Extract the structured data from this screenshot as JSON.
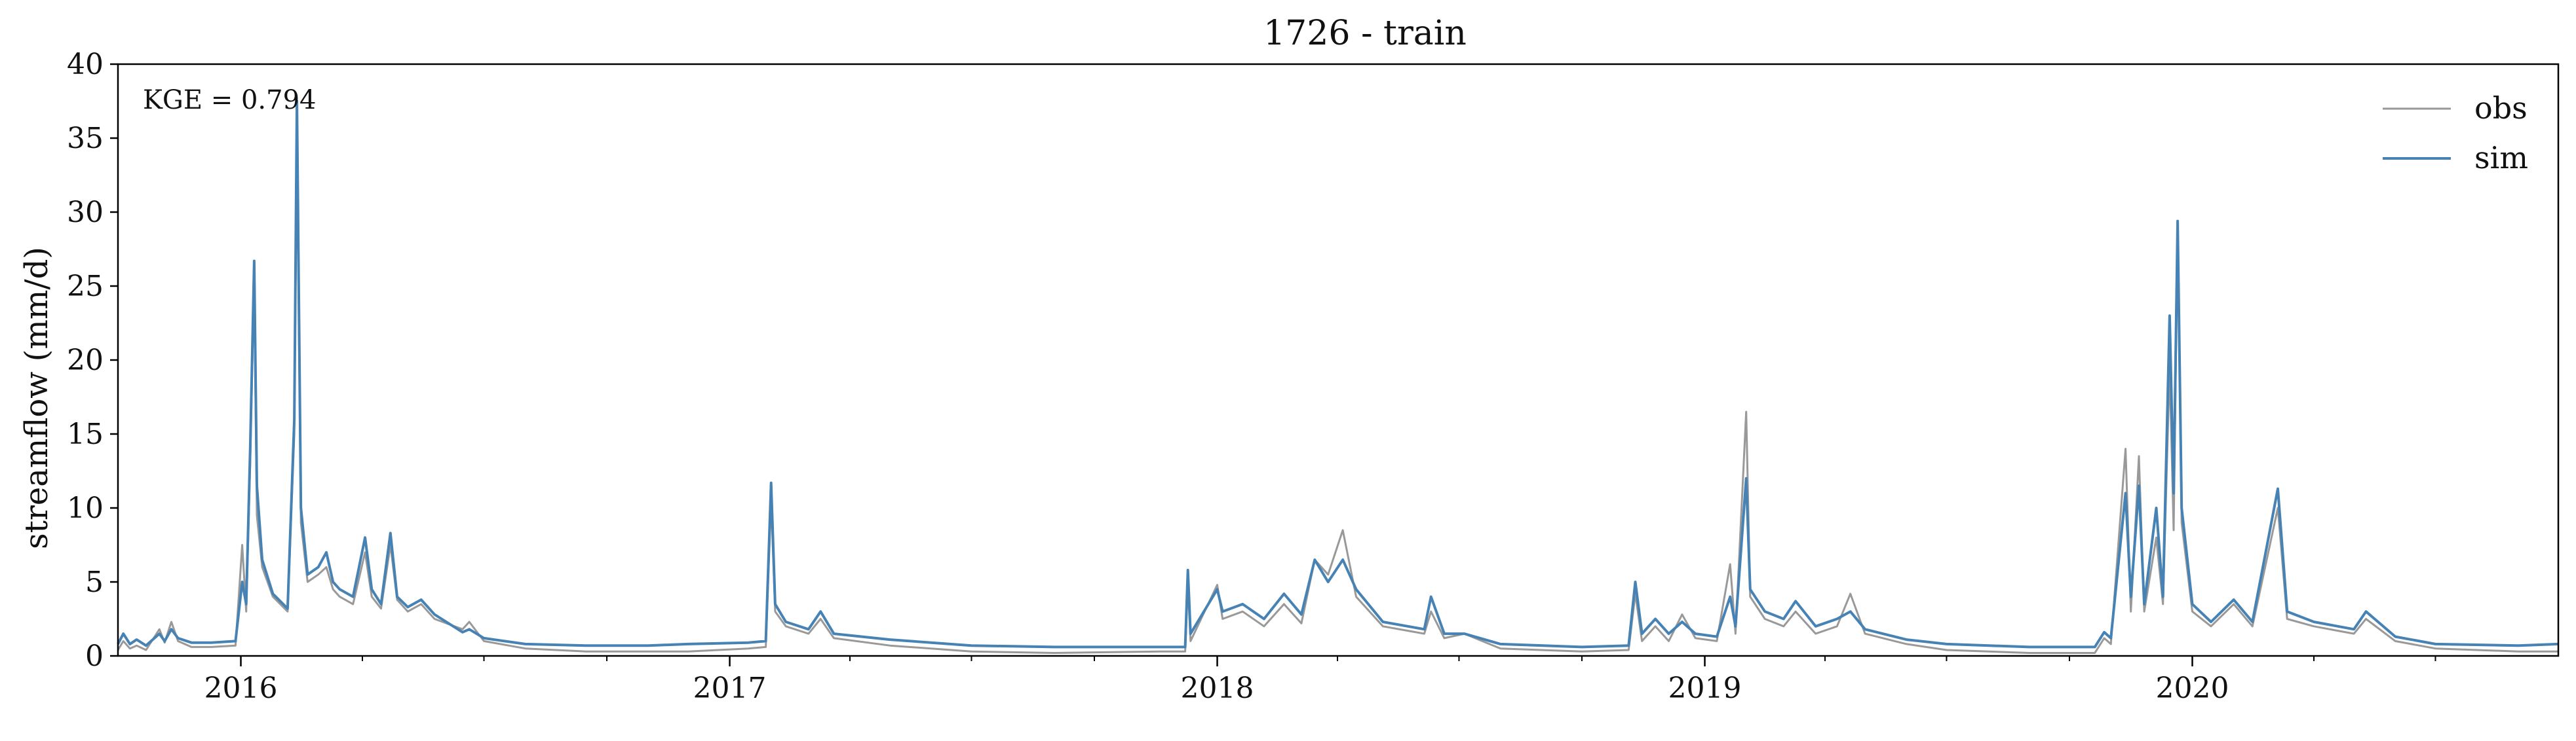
{
  "chart_data": {
    "type": "line",
    "title": "1726 - train",
    "xlabel": "",
    "ylabel": "streamflow (mm/d)",
    "xlim": [
      "2015-10-01",
      "2020-10-01"
    ],
    "ylim": [
      0,
      40
    ],
    "y_ticks": [
      0,
      5,
      10,
      15,
      20,
      25,
      30,
      35,
      40
    ],
    "x_ticks": [
      "2016",
      "2017",
      "2018",
      "2019",
      "2020"
    ],
    "x_tick_dates": [
      "2016-01-01",
      "2017-01-01",
      "2018-01-01",
      "2019-01-01",
      "2020-01-01"
    ],
    "annotation": "KGE = 0.794",
    "legend_position": "top-right",
    "grid": false,
    "series": [
      {
        "name": "obs",
        "color": "#999999",
        "points": [
          [
            "2015-10-01",
            0.4
          ],
          [
            "2015-10-05",
            1.0
          ],
          [
            "2015-10-10",
            0.5
          ],
          [
            "2015-10-15",
            0.7
          ],
          [
            "2015-10-22",
            0.4
          ],
          [
            "2015-11-01",
            1.8
          ],
          [
            "2015-11-05",
            0.9
          ],
          [
            "2015-11-10",
            2.3
          ],
          [
            "2015-11-15",
            1.0
          ],
          [
            "2015-11-25",
            0.6
          ],
          [
            "2015-12-10",
            0.6
          ],
          [
            "2015-12-28",
            0.7
          ],
          [
            "2016-01-02",
            7.5
          ],
          [
            "2016-01-05",
            3.0
          ],
          [
            "2016-01-08",
            13.0
          ],
          [
            "2016-01-11",
            25.5
          ],
          [
            "2016-01-13",
            9.5
          ],
          [
            "2016-01-17",
            6.0
          ],
          [
            "2016-01-25",
            4.0
          ],
          [
            "2016-02-05",
            3.0
          ],
          [
            "2016-02-10",
            15.0
          ],
          [
            "2016-02-12",
            35.5
          ],
          [
            "2016-02-15",
            9.0
          ],
          [
            "2016-02-20",
            5.0
          ],
          [
            "2016-02-28",
            5.5
          ],
          [
            "2016-03-05",
            6.0
          ],
          [
            "2016-03-10",
            4.5
          ],
          [
            "2016-03-15",
            4.0
          ],
          [
            "2016-03-25",
            3.5
          ],
          [
            "2016-04-03",
            7.0
          ],
          [
            "2016-04-08",
            4.0
          ],
          [
            "2016-04-15",
            3.2
          ],
          [
            "2016-04-22",
            7.5
          ],
          [
            "2016-04-27",
            3.8
          ],
          [
            "2016-05-05",
            3.0
          ],
          [
            "2016-05-15",
            3.5
          ],
          [
            "2016-05-25",
            2.5
          ],
          [
            "2016-06-15",
            1.8
          ],
          [
            "2016-06-20",
            2.3
          ],
          [
            "2016-07-01",
            1.0
          ],
          [
            "2016-08-01",
            0.5
          ],
          [
            "2016-09-15",
            0.3
          ],
          [
            "2016-11-01",
            0.3
          ],
          [
            "2016-12-01",
            0.3
          ],
          [
            "2017-01-15",
            0.5
          ],
          [
            "2017-01-28",
            0.6
          ],
          [
            "2017-02-01",
            10.5
          ],
          [
            "2017-02-04",
            3.0
          ],
          [
            "2017-02-12",
            2.0
          ],
          [
            "2017-03-01",
            1.5
          ],
          [
            "2017-03-10",
            2.5
          ],
          [
            "2017-03-20",
            1.2
          ],
          [
            "2017-05-01",
            0.7
          ],
          [
            "2017-07-01",
            0.3
          ],
          [
            "2017-09-01",
            0.2
          ],
          [
            "2017-11-20",
            0.3
          ],
          [
            "2017-12-08",
            0.3
          ],
          [
            "2017-12-10",
            4.8
          ],
          [
            "2017-12-12",
            1.0
          ],
          [
            "2018-01-01",
            4.8
          ],
          [
            "2018-01-05",
            2.5
          ],
          [
            "2018-01-20",
            3.0
          ],
          [
            "2018-02-05",
            2.0
          ],
          [
            "2018-02-20",
            3.5
          ],
          [
            "2018-03-05",
            2.2
          ],
          [
            "2018-03-15",
            6.5
          ],
          [
            "2018-03-25",
            5.5
          ],
          [
            "2018-04-05",
            8.5
          ],
          [
            "2018-04-15",
            4.0
          ],
          [
            "2018-05-05",
            2.0
          ],
          [
            "2018-06-05",
            1.5
          ],
          [
            "2018-06-10",
            3.0
          ],
          [
            "2018-06-20",
            1.2
          ],
          [
            "2018-07-05",
            1.5
          ],
          [
            "2018-08-01",
            0.5
          ],
          [
            "2018-10-01",
            0.3
          ],
          [
            "2018-11-05",
            0.4
          ],
          [
            "2018-11-10",
            4.2
          ],
          [
            "2018-11-15",
            1.0
          ],
          [
            "2018-11-25",
            2.0
          ],
          [
            "2018-12-05",
            1.0
          ],
          [
            "2018-12-15",
            2.8
          ],
          [
            "2018-12-25",
            1.2
          ],
          [
            "2019-01-10",
            1.0
          ],
          [
            "2019-01-20",
            6.2
          ],
          [
            "2019-01-24",
            1.5
          ],
          [
            "2019-02-01",
            16.5
          ],
          [
            "2019-02-04",
            4.0
          ],
          [
            "2019-02-15",
            2.5
          ],
          [
            "2019-03-01",
            2.0
          ],
          [
            "2019-03-10",
            3.0
          ],
          [
            "2019-03-25",
            1.5
          ],
          [
            "2019-04-10",
            2.0
          ],
          [
            "2019-04-20",
            4.2
          ],
          [
            "2019-05-01",
            1.5
          ],
          [
            "2019-06-01",
            0.8
          ],
          [
            "2019-07-01",
            0.4
          ],
          [
            "2019-09-01",
            0.2
          ],
          [
            "2019-10-20",
            0.2
          ],
          [
            "2019-10-27",
            1.2
          ],
          [
            "2019-11-01",
            0.8
          ],
          [
            "2019-11-12",
            14.0
          ],
          [
            "2019-11-16",
            3.0
          ],
          [
            "2019-11-22",
            13.5
          ],
          [
            "2019-11-26",
            3.0
          ],
          [
            "2019-12-05",
            8.0
          ],
          [
            "2019-12-10",
            3.5
          ],
          [
            "2019-12-15",
            19.5
          ],
          [
            "2019-12-18",
            8.5
          ],
          [
            "2019-12-21",
            29.0
          ],
          [
            "2019-12-24",
            9.0
          ],
          [
            "2020-01-01",
            3.0
          ],
          [
            "2020-01-15",
            2.0
          ],
          [
            "2020-02-01",
            3.5
          ],
          [
            "2020-02-15",
            2.0
          ],
          [
            "2020-03-05",
            10.0
          ],
          [
            "2020-03-12",
            2.5
          ],
          [
            "2020-04-01",
            2.0
          ],
          [
            "2020-05-01",
            1.5
          ],
          [
            "2020-05-10",
            2.5
          ],
          [
            "2020-06-01",
            1.0
          ],
          [
            "2020-07-01",
            0.5
          ],
          [
            "2020-09-01",
            0.3
          ],
          [
            "2020-10-01",
            0.3
          ]
        ]
      },
      {
        "name": "sim",
        "color": "#4682b4",
        "points": [
          [
            "2015-10-01",
            0.8
          ],
          [
            "2015-10-05",
            1.5
          ],
          [
            "2015-10-10",
            0.8
          ],
          [
            "2015-10-15",
            1.1
          ],
          [
            "2015-10-22",
            0.7
          ],
          [
            "2015-11-01",
            1.5
          ],
          [
            "2015-11-05",
            1.0
          ],
          [
            "2015-11-10",
            1.8
          ],
          [
            "2015-11-15",
            1.2
          ],
          [
            "2015-11-25",
            0.9
          ],
          [
            "2015-12-10",
            0.9
          ],
          [
            "2015-12-28",
            1.0
          ],
          [
            "2016-01-02",
            5.0
          ],
          [
            "2016-01-05",
            3.5
          ],
          [
            "2016-01-08",
            14.0
          ],
          [
            "2016-01-11",
            26.7
          ],
          [
            "2016-01-13",
            11.5
          ],
          [
            "2016-01-17",
            6.5
          ],
          [
            "2016-01-25",
            4.2
          ],
          [
            "2016-02-05",
            3.2
          ],
          [
            "2016-02-10",
            16.0
          ],
          [
            "2016-02-12",
            37.5
          ],
          [
            "2016-02-15",
            10.0
          ],
          [
            "2016-02-20",
            5.5
          ],
          [
            "2016-02-28",
            6.0
          ],
          [
            "2016-03-05",
            7.0
          ],
          [
            "2016-03-10",
            5.0
          ],
          [
            "2016-03-15",
            4.5
          ],
          [
            "2016-03-25",
            4.0
          ],
          [
            "2016-04-03",
            8.0
          ],
          [
            "2016-04-08",
            4.5
          ],
          [
            "2016-04-15",
            3.5
          ],
          [
            "2016-04-22",
            8.3
          ],
          [
            "2016-04-27",
            4.0
          ],
          [
            "2016-05-05",
            3.3
          ],
          [
            "2016-05-15",
            3.8
          ],
          [
            "2016-05-25",
            2.8
          ],
          [
            "2016-06-15",
            1.6
          ],
          [
            "2016-06-20",
            1.8
          ],
          [
            "2016-07-01",
            1.2
          ],
          [
            "2016-08-01",
            0.8
          ],
          [
            "2016-09-15",
            0.7
          ],
          [
            "2016-11-01",
            0.7
          ],
          [
            "2016-12-01",
            0.8
          ],
          [
            "2017-01-15",
            0.9
          ],
          [
            "2017-01-28",
            1.0
          ],
          [
            "2017-02-01",
            11.7
          ],
          [
            "2017-02-04",
            3.5
          ],
          [
            "2017-02-12",
            2.3
          ],
          [
            "2017-03-01",
            1.8
          ],
          [
            "2017-03-10",
            3.0
          ],
          [
            "2017-03-20",
            1.5
          ],
          [
            "2017-05-01",
            1.1
          ],
          [
            "2017-07-01",
            0.7
          ],
          [
            "2017-09-01",
            0.6
          ],
          [
            "2017-11-20",
            0.6
          ],
          [
            "2017-12-08",
            0.6
          ],
          [
            "2017-12-10",
            5.8
          ],
          [
            "2017-12-12",
            1.5
          ],
          [
            "2018-01-01",
            4.5
          ],
          [
            "2018-01-05",
            3.0
          ],
          [
            "2018-01-20",
            3.5
          ],
          [
            "2018-02-05",
            2.5
          ],
          [
            "2018-02-20",
            4.2
          ],
          [
            "2018-03-05",
            2.8
          ],
          [
            "2018-03-15",
            6.5
          ],
          [
            "2018-03-25",
            5.0
          ],
          [
            "2018-04-05",
            6.5
          ],
          [
            "2018-04-15",
            4.5
          ],
          [
            "2018-05-05",
            2.3
          ],
          [
            "2018-06-05",
            1.8
          ],
          [
            "2018-06-10",
            4.0
          ],
          [
            "2018-06-20",
            1.5
          ],
          [
            "2018-07-05",
            1.5
          ],
          [
            "2018-08-01",
            0.8
          ],
          [
            "2018-10-01",
            0.6
          ],
          [
            "2018-11-05",
            0.7
          ],
          [
            "2018-11-10",
            5.0
          ],
          [
            "2018-11-15",
            1.5
          ],
          [
            "2018-11-25",
            2.5
          ],
          [
            "2018-12-05",
            1.5
          ],
          [
            "2018-12-15",
            2.3
          ],
          [
            "2018-12-25",
            1.5
          ],
          [
            "2019-01-10",
            1.3
          ],
          [
            "2019-01-20",
            4.0
          ],
          [
            "2019-01-24",
            2.0
          ],
          [
            "2019-02-01",
            12.0
          ],
          [
            "2019-02-04",
            4.5
          ],
          [
            "2019-02-15",
            3.0
          ],
          [
            "2019-03-01",
            2.5
          ],
          [
            "2019-03-10",
            3.7
          ],
          [
            "2019-03-25",
            2.0
          ],
          [
            "2019-04-10",
            2.5
          ],
          [
            "2019-04-20",
            3.0
          ],
          [
            "2019-05-01",
            1.8
          ],
          [
            "2019-06-01",
            1.1
          ],
          [
            "2019-07-01",
            0.8
          ],
          [
            "2019-09-01",
            0.6
          ],
          [
            "2019-10-20",
            0.6
          ],
          [
            "2019-10-27",
            1.6
          ],
          [
            "2019-11-01",
            1.2
          ],
          [
            "2019-11-12",
            11.0
          ],
          [
            "2019-11-16",
            4.0
          ],
          [
            "2019-11-22",
            11.5
          ],
          [
            "2019-11-26",
            3.5
          ],
          [
            "2019-12-05",
            10.0
          ],
          [
            "2019-12-10",
            4.0
          ],
          [
            "2019-12-15",
            23.0
          ],
          [
            "2019-12-18",
            11.0
          ],
          [
            "2019-12-21",
            29.4
          ],
          [
            "2019-12-24",
            10.0
          ],
          [
            "2020-01-01",
            3.5
          ],
          [
            "2020-01-15",
            2.3
          ],
          [
            "2020-02-01",
            3.8
          ],
          [
            "2020-02-15",
            2.3
          ],
          [
            "2020-03-05",
            11.3
          ],
          [
            "2020-03-12",
            3.0
          ],
          [
            "2020-04-01",
            2.3
          ],
          [
            "2020-05-01",
            1.8
          ],
          [
            "2020-05-10",
            3.0
          ],
          [
            "2020-06-01",
            1.3
          ],
          [
            "2020-07-01",
            0.8
          ],
          [
            "2020-09-01",
            0.7
          ],
          [
            "2020-10-01",
            0.8
          ]
        ]
      }
    ]
  }
}
